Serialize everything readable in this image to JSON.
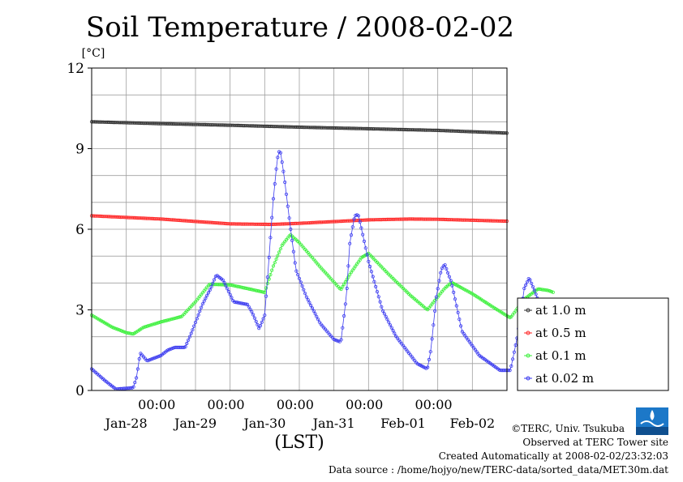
{
  "chart_data": {
    "type": "line",
    "title": "Soil Temperature / 2008-02-02",
    "ylabel": "[°C]",
    "xlabel": "(LST)",
    "ylim": [
      0,
      12
    ],
    "yticks": [
      "0",
      "3",
      "6",
      "9",
      "12"
    ],
    "time_tick_labels": [
      "00:00",
      "00:00",
      "00:00",
      "00:00",
      "00:00"
    ],
    "date_labels": [
      "Jan-28",
      "Jan-29",
      "Jan-30",
      "Jan-31",
      "Feb-01",
      "Feb-02"
    ],
    "x_range_days": [
      0,
      6
    ],
    "grid": true,
    "legend_position": "right",
    "series": [
      {
        "name": "at 1.0 m",
        "color": "#333333",
        "points": [
          [
            0,
            10.0
          ],
          [
            1,
            9.93
          ],
          [
            2,
            9.87
          ],
          [
            3,
            9.8
          ],
          [
            4,
            9.74
          ],
          [
            5,
            9.68
          ],
          [
            6,
            9.58
          ]
        ]
      },
      {
        "name": "at 0.5 m",
        "color": "#ff2a2a",
        "points": [
          [
            0,
            6.5
          ],
          [
            1,
            6.38
          ],
          [
            2,
            6.2
          ],
          [
            2.6,
            6.18
          ],
          [
            3,
            6.22
          ],
          [
            4,
            6.35
          ],
          [
            4.6,
            6.38
          ],
          [
            5,
            6.37
          ],
          [
            6,
            6.3
          ]
        ]
      },
      {
        "name": "at 0.1 m",
        "color": "#3cf03c",
        "points": [
          [
            0,
            2.8
          ],
          [
            0.3,
            2.35
          ],
          [
            0.5,
            2.15
          ],
          [
            0.6,
            2.1
          ],
          [
            0.75,
            2.35
          ],
          [
            1.0,
            2.55
          ],
          [
            1.3,
            2.75
          ],
          [
            1.5,
            3.3
          ],
          [
            1.7,
            3.95
          ],
          [
            2.0,
            3.93
          ],
          [
            2.2,
            3.82
          ],
          [
            2.5,
            3.65
          ],
          [
            2.62,
            4.6
          ],
          [
            2.75,
            5.4
          ],
          [
            2.87,
            5.8
          ],
          [
            3.0,
            5.5
          ],
          [
            3.3,
            4.6
          ],
          [
            3.6,
            3.75
          ],
          [
            3.75,
            4.4
          ],
          [
            3.9,
            4.95
          ],
          [
            4.0,
            5.1
          ],
          [
            4.3,
            4.3
          ],
          [
            4.6,
            3.55
          ],
          [
            4.85,
            3.0
          ],
          [
            5.1,
            3.8
          ],
          [
            5.2,
            4.02
          ],
          [
            5.5,
            3.6
          ],
          [
            5.8,
            3.1
          ],
          [
            6.05,
            2.7
          ],
          [
            6.25,
            3.4
          ],
          [
            6.45,
            3.78
          ],
          [
            6.6,
            3.72
          ],
          [
            6.67,
            3.65
          ]
        ]
      },
      {
        "name": "at 0.02 m",
        "color": "#3c3cf0",
        "points": [
          [
            0,
            0.8
          ],
          [
            0.2,
            0.35
          ],
          [
            0.35,
            0.05
          ],
          [
            0.6,
            0.1
          ],
          [
            0.65,
            0.5
          ],
          [
            0.7,
            1.4
          ],
          [
            0.8,
            1.1
          ],
          [
            1.0,
            1.3
          ],
          [
            1.1,
            1.5
          ],
          [
            1.2,
            1.6
          ],
          [
            1.35,
            1.6
          ],
          [
            1.45,
            2.2
          ],
          [
            1.6,
            3.2
          ],
          [
            1.72,
            3.8
          ],
          [
            1.8,
            4.3
          ],
          [
            1.9,
            4.1
          ],
          [
            2.05,
            3.3
          ],
          [
            2.25,
            3.2
          ],
          [
            2.32,
            2.9
          ],
          [
            2.42,
            2.3
          ],
          [
            2.5,
            2.8
          ],
          [
            2.55,
            4.5
          ],
          [
            2.62,
            7.0
          ],
          [
            2.68,
            8.6
          ],
          [
            2.72,
            9.0
          ],
          [
            2.78,
            8.0
          ],
          [
            2.85,
            6.5
          ],
          [
            2.95,
            4.5
          ],
          [
            3.1,
            3.5
          ],
          [
            3.3,
            2.5
          ],
          [
            3.5,
            1.9
          ],
          [
            3.6,
            1.8
          ],
          [
            3.68,
            3.5
          ],
          [
            3.73,
            5.5
          ],
          [
            3.8,
            6.5
          ],
          [
            3.85,
            6.55
          ],
          [
            3.9,
            6.0
          ],
          [
            4.0,
            4.8
          ],
          [
            4.2,
            3.0
          ],
          [
            4.4,
            2.0
          ],
          [
            4.7,
            1.0
          ],
          [
            4.85,
            0.8
          ],
          [
            4.9,
            1.5
          ],
          [
            4.98,
            3.5
          ],
          [
            5.05,
            4.5
          ],
          [
            5.1,
            4.7
          ],
          [
            5.2,
            4.0
          ],
          [
            5.35,
            2.2
          ],
          [
            5.6,
            1.3
          ],
          [
            5.9,
            0.75
          ],
          [
            6.05,
            0.75
          ],
          [
            6.15,
            2.0
          ],
          [
            6.25,
            3.8
          ],
          [
            6.32,
            4.2
          ],
          [
            6.4,
            3.7
          ],
          [
            6.5,
            3.0
          ],
          [
            6.58,
            2.75
          ],
          [
            6.67,
            2.75
          ]
        ]
      }
    ]
  },
  "footer": {
    "credit_copyright": "©TERC, Univ. Tsukuba",
    "credit_site": "Observed at TERC Tower site",
    "credit_created": "Created Automatically at 2008-02-02/23:32:03",
    "credit_source": "Data source : /home/hojyo/new/TERC-data/sorted_data/MET.30m.dat",
    "logo_text": "TERC"
  }
}
